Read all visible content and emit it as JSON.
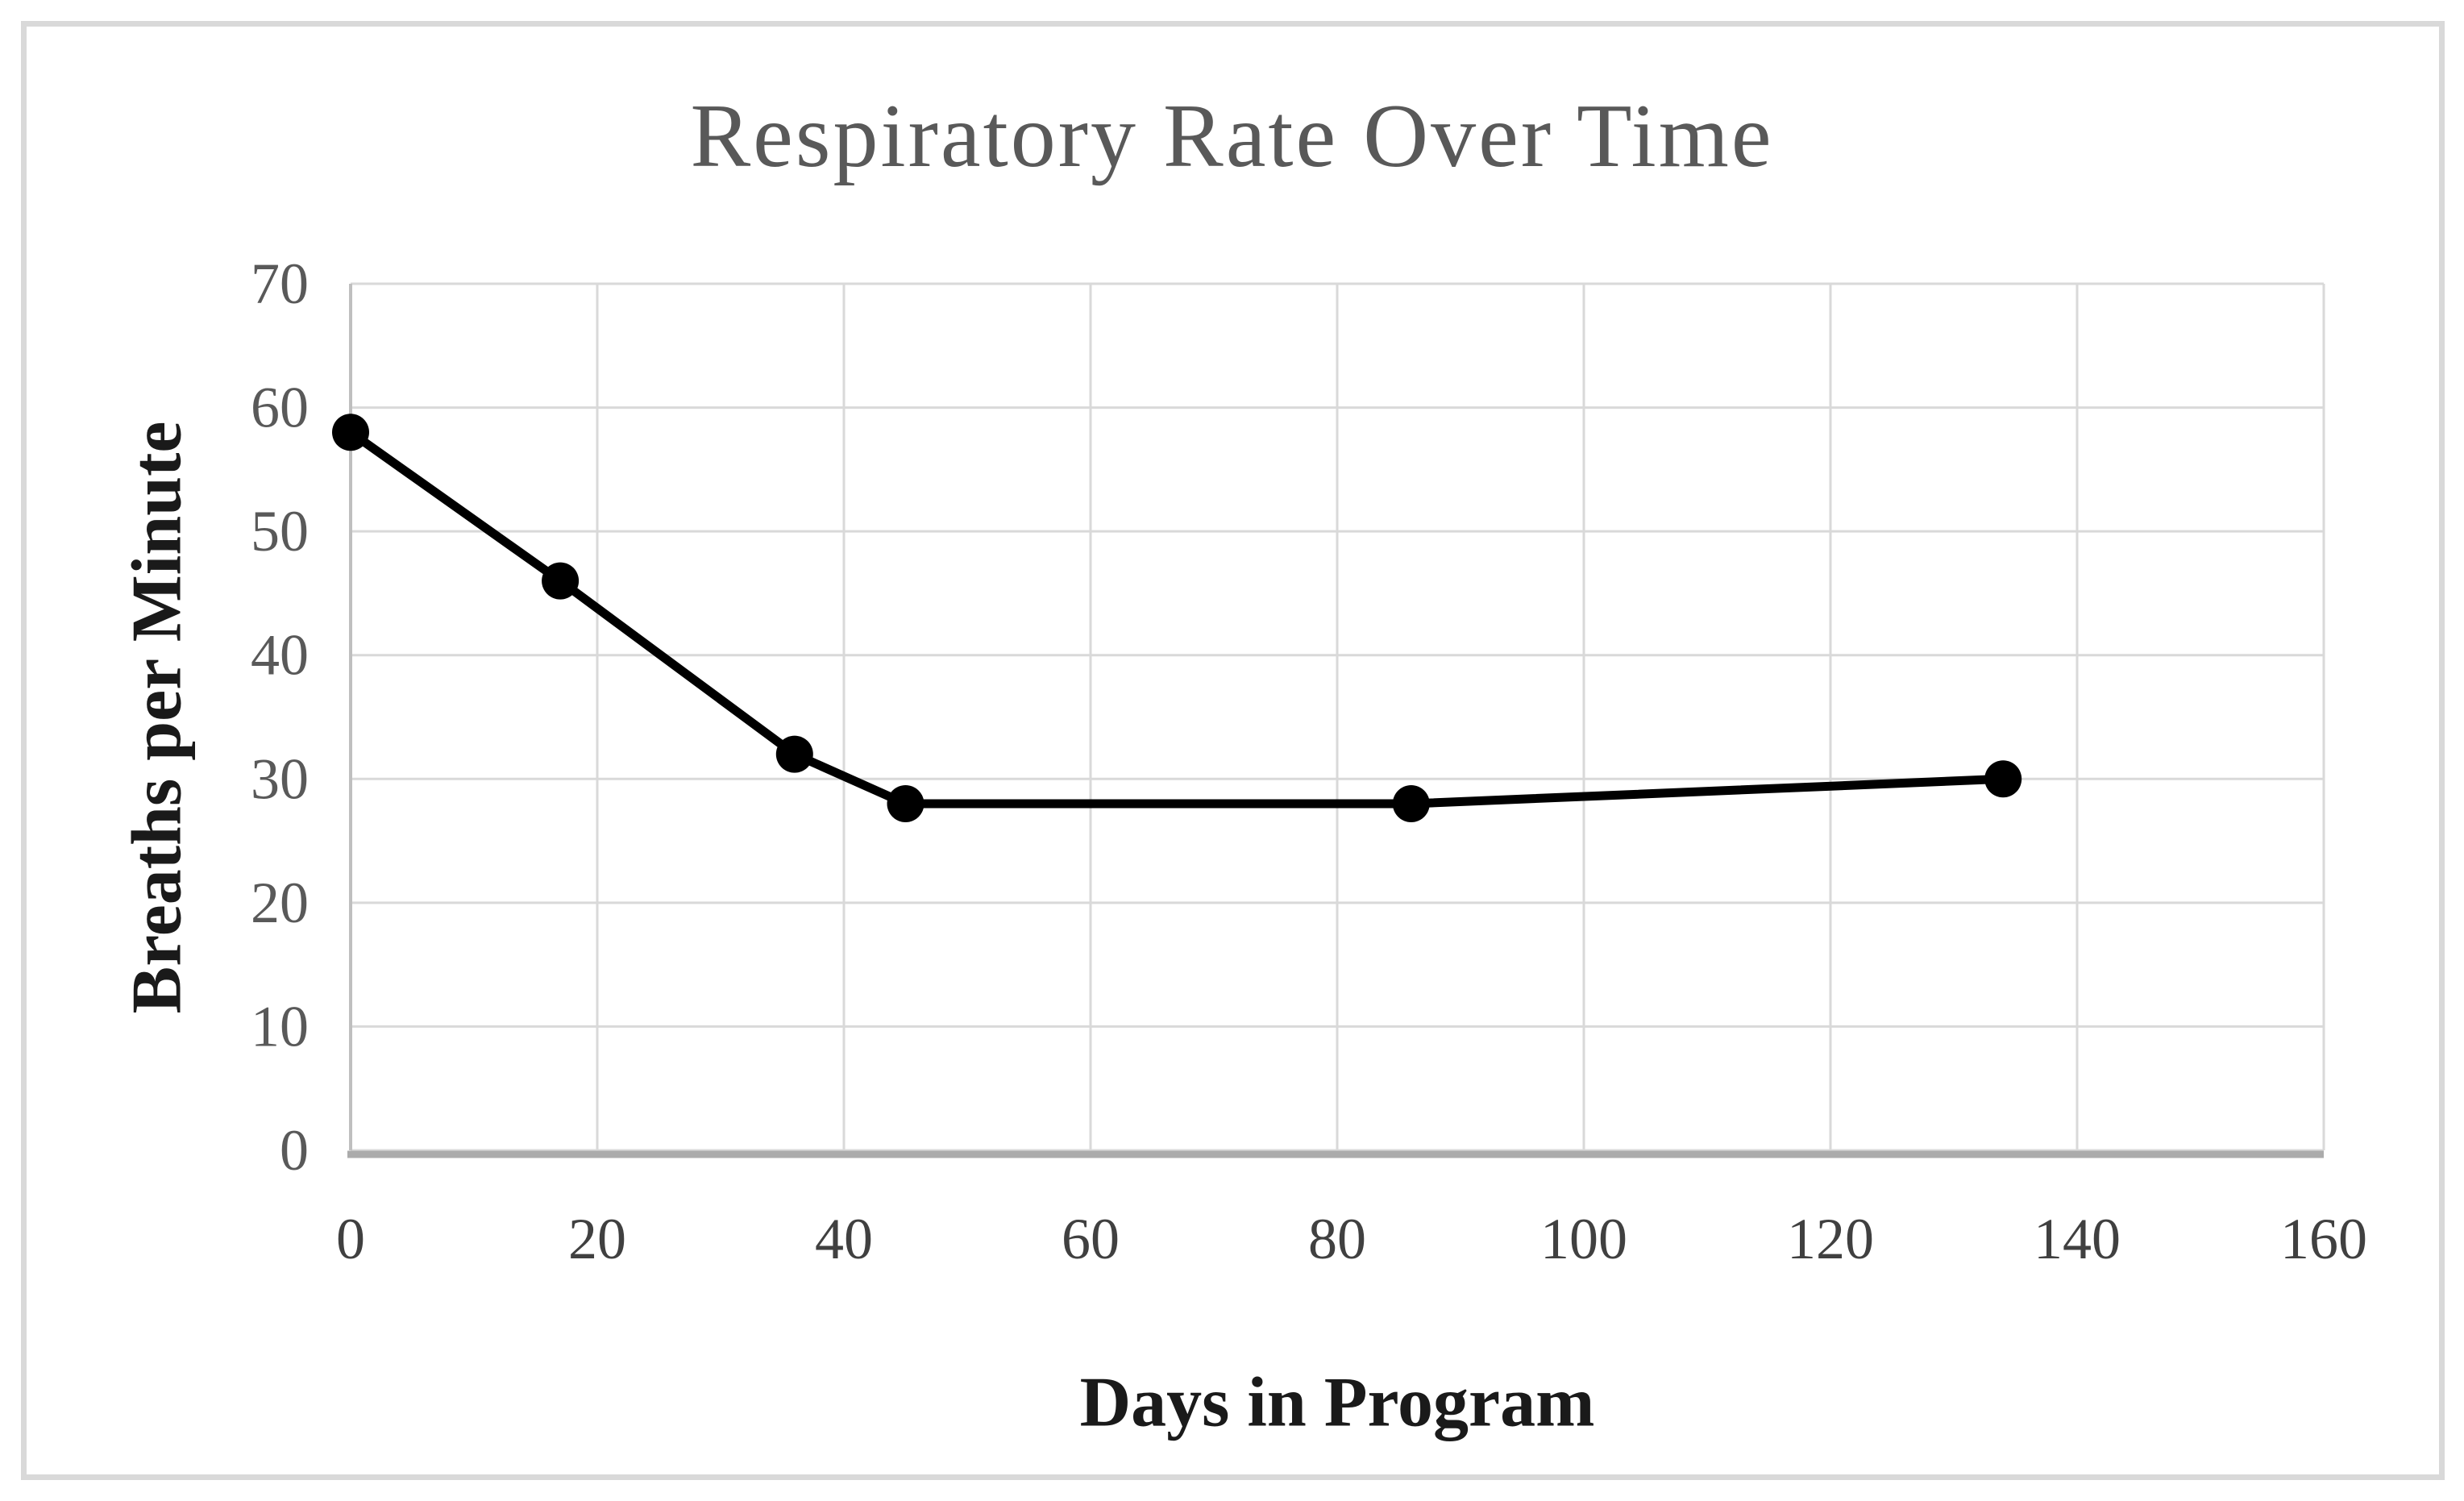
{
  "chart_data": {
    "type": "line",
    "title": "Respiratory Rate Over Time",
    "xlabel": "Days in Program",
    "ylabel": "Breaths per Minute",
    "x": [
      0,
      17,
      36,
      45,
      86,
      134
    ],
    "y": [
      58,
      46,
      32,
      28,
      28,
      30
    ],
    "xlim": [
      0,
      160
    ],
    "ylim": [
      0,
      70
    ],
    "x_ticks": [
      0,
      20,
      40,
      60,
      80,
      100,
      120,
      140,
      160
    ],
    "y_ticks": [
      0,
      10,
      20,
      30,
      40,
      50,
      60,
      70
    ],
    "grid": true,
    "legend": false,
    "marker": "circle",
    "colors": {
      "line": "#000000",
      "marker": "#000000",
      "grid": "#d9d9d9",
      "y_axis_line": "#bfbfbf",
      "x_axis_line": "#ababab",
      "title": "#595959",
      "y_tick_label": "#595959",
      "x_tick_label": "#404040",
      "axis_title": "#1a1a1a",
      "frame_border": "#d9d9d9"
    }
  }
}
